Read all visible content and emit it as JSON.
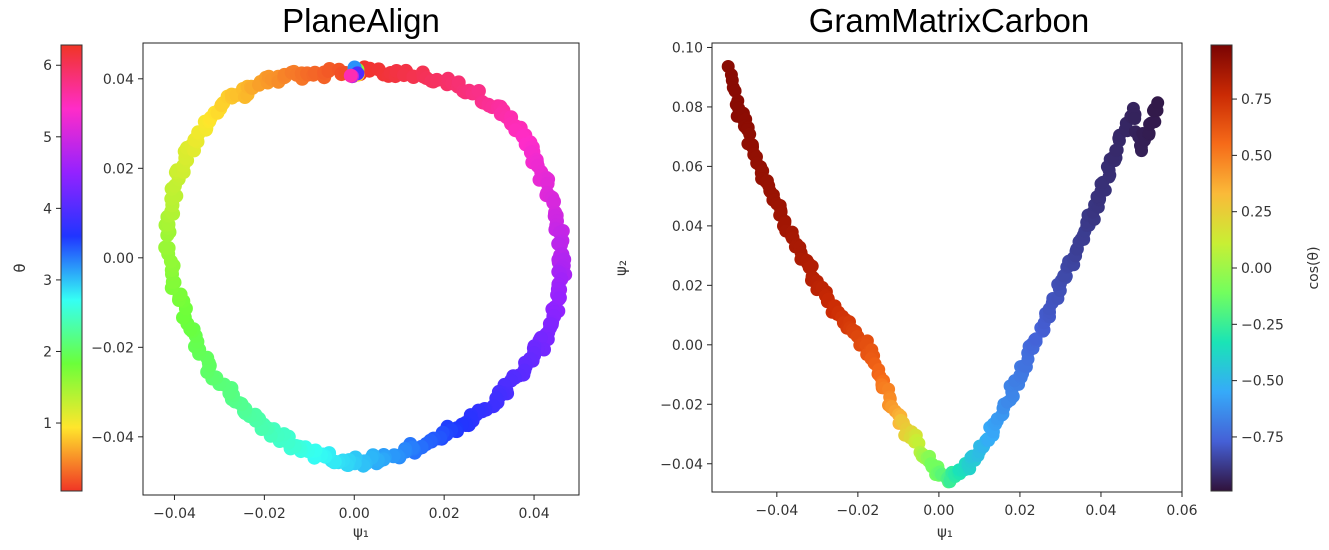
{
  "chart_data": [
    {
      "type": "scatter",
      "title": "PlaneAlign",
      "xlabel": "ψ₁",
      "ylabel": "",
      "xlim": [
        -0.047,
        0.05
      ],
      "ylim": [
        -0.053,
        0.048
      ],
      "xticks": [
        -0.04,
        -0.02,
        0.0,
        0.02,
        0.04
      ],
      "xtick_labels": [
        "−0.04",
        "−0.02",
        "0.00",
        "0.02",
        "0.04"
      ],
      "yticks": [
        -0.04,
        -0.02,
        0.0,
        0.02,
        0.04
      ],
      "ytick_labels": [
        "−0.04",
        "−0.02",
        "0.00",
        "0.02",
        "0.04"
      ],
      "grid": false,
      "colormap": "hsv (rainbow)",
      "colorbar": {
        "label": "θ",
        "position": "left",
        "range": [
          0.05,
          6.283
        ],
        "ticks": [
          1,
          2,
          3,
          4,
          5,
          6
        ],
        "tick_labels": [
          "1",
          "2",
          "3",
          "4",
          "5",
          "6"
        ],
        "gradient_bottom_to_top": [
          "#f03525",
          "#ffe62c",
          "#6bff3a",
          "#35fff4",
          "#2035ff",
          "#9422ff",
          "#ff2cc8",
          "#f03525"
        ]
      },
      "series": [
        {
          "point_description": "closed rounded-triangle loop of points colored by θ",
          "x": [
            0.0,
            0.0081,
            0.0154,
            0.0218,
            0.0273,
            0.032,
            0.0359,
            0.0391,
            0.0416,
            0.0436,
            0.0451,
            0.046,
            0.0463,
            0.0458,
            0.0446,
            0.0427,
            0.04,
            0.0367,
            0.033,
            0.029,
            0.0248,
            0.0205,
            0.016,
            0.0115,
            0.0068,
            0.0022,
            -0.0025,
            -0.0074,
            -0.0122,
            -0.017,
            -0.0219,
            -0.0265,
            -0.0307,
            -0.0345,
            -0.0377,
            -0.04,
            -0.0413,
            -0.0412,
            -0.0399,
            -0.0376,
            -0.0346,
            -0.0311,
            -0.0272,
            -0.023,
            -0.0183,
            -0.0128,
            -0.0067,
            0.0
          ],
          "y": [
            0.0415,
            0.0413,
            0.0405,
            0.039,
            0.0367,
            0.0335,
            0.0294,
            0.0246,
            0.0192,
            0.0137,
            0.0082,
            0.0029,
            -0.0021,
            -0.0071,
            -0.0121,
            -0.0171,
            -0.0218,
            -0.0263,
            -0.0303,
            -0.0339,
            -0.0369,
            -0.0395,
            -0.0416,
            -0.0433,
            -0.0446,
            -0.0455,
            -0.0453,
            -0.0441,
            -0.0422,
            -0.0397,
            -0.0364,
            -0.0321,
            -0.0268,
            -0.0205,
            -0.0133,
            -0.0055,
            0.0022,
            0.0094,
            0.0161,
            0.0223,
            0.0278,
            0.0324,
            0.0358,
            0.0382,
            0.0398,
            0.0409,
            0.0414,
            0.0415
          ],
          "theta": [
            6.283,
            6.152,
            6.021,
            5.89,
            5.76,
            5.629,
            5.498,
            5.367,
            5.236,
            5.105,
            4.974,
            4.843,
            4.712,
            4.581,
            4.451,
            4.32,
            4.189,
            4.058,
            3.927,
            3.796,
            3.665,
            3.534,
            3.403,
            3.272,
            3.142,
            3.011,
            2.88,
            2.749,
            2.618,
            2.487,
            2.356,
            2.225,
            2.094,
            1.963,
            1.833,
            1.702,
            1.571,
            1.44,
            1.309,
            1.178,
            1.047,
            0.916,
            0.785,
            0.654,
            0.524,
            0.393,
            0.262,
            0.131
          ]
        }
      ]
    },
    {
      "type": "scatter",
      "title": "GramMatrixCarbon",
      "xlabel": "ψ₁",
      "ylabel": "ψ₂",
      "xlim": [
        -0.056,
        0.06
      ],
      "ylim": [
        -0.0495,
        0.1015
      ],
      "xticks": [
        -0.04,
        -0.02,
        0.0,
        0.02,
        0.04,
        0.06
      ],
      "xtick_labels": [
        "−0.04",
        "−0.02",
        "0.00",
        "0.02",
        "0.04",
        "0.06"
      ],
      "yticks": [
        -0.04,
        -0.02,
        0.0,
        0.02,
        0.04,
        0.06,
        0.08,
        0.1
      ],
      "ytick_labels": [
        "−0.04",
        "−0.02",
        "0.00",
        "0.02",
        "0.04",
        "0.06",
        "0.08",
        "0.10"
      ],
      "grid": false,
      "colormap": "turbo",
      "colorbar": {
        "label": "cos(θ)",
        "position": "right",
        "range": [
          -0.99,
          0.99
        ],
        "ticks": [
          -0.75,
          -0.5,
          -0.25,
          0.0,
          0.25,
          0.5,
          0.75
        ],
        "tick_labels": [
          "−0.75",
          "−0.50",
          "−0.25",
          "0.00",
          "0.25",
          "0.50",
          "0.75"
        ],
        "gradient_bottom_to_top": [
          "#30123b",
          "#4560d6",
          "#36aaf9",
          "#1ae4b6",
          "#72fe5e",
          "#c8ef34",
          "#faba39",
          "#f66b19",
          "#ca2a04",
          "#7a0403"
        ]
      },
      "series": [
        {
          "point_description": "U-shaped parabola of points colored by cos(θ)",
          "x": [
            -0.052,
            -0.05,
            -0.048,
            -0.046,
            -0.044,
            -0.042,
            -0.04,
            -0.038,
            -0.036,
            -0.034,
            -0.032,
            -0.03,
            -0.028,
            -0.026,
            -0.024,
            -0.022,
            -0.02,
            -0.018,
            -0.016,
            -0.014,
            -0.012,
            -0.01,
            -0.008,
            -0.006,
            -0.004,
            -0.002,
            0.0,
            0.002,
            0.004,
            0.006,
            0.008,
            0.01,
            0.012,
            0.014,
            0.016,
            0.018,
            0.02,
            0.022,
            0.024,
            0.026,
            0.028,
            0.03,
            0.032,
            0.034,
            0.036,
            0.038,
            0.04,
            0.042,
            0.044,
            0.046,
            0.048,
            0.05,
            0.052,
            0.054
          ],
          "y": [
            0.0936,
            0.0808,
            0.0735,
            0.0665,
            0.0599,
            0.0535,
            0.0474,
            0.0416,
            0.0361,
            0.0309,
            0.026,
            0.0214,
            0.0171,
            0.0131,
            0.0093,
            0.0059,
            0.0028,
            -0.0001,
            -0.0062,
            -0.0124,
            -0.0182,
            -0.0235,
            -0.0282,
            -0.0327,
            -0.0368,
            -0.04,
            -0.0439,
            -0.045,
            -0.0443,
            -0.0422,
            -0.0393,
            -0.0359,
            -0.0316,
            -0.0267,
            -0.0213,
            -0.0159,
            -0.0103,
            -0.0048,
            0.0011,
            0.0074,
            0.0141,
            0.0206,
            0.0264,
            0.0322,
            0.0382,
            0.0446,
            0.0517,
            0.0587,
            0.0655,
            0.0724,
            0.0795,
            0.0653,
            0.0742,
            0.0814
          ],
          "cos_theta": [
            0.95,
            0.95,
            0.94,
            0.93,
            0.92,
            0.91,
            0.9,
            0.89,
            0.87,
            0.86,
            0.84,
            0.82,
            0.8,
            0.77,
            0.74,
            0.71,
            0.68,
            0.64,
            0.6,
            0.54,
            0.46,
            0.37,
            0.26,
            0.14,
            0.02,
            -0.1,
            -0.12,
            -0.2,
            -0.28,
            -0.35,
            -0.42,
            -0.48,
            -0.53,
            -0.58,
            -0.62,
            -0.66,
            -0.69,
            -0.72,
            -0.75,
            -0.78,
            -0.8,
            -0.82,
            -0.84,
            -0.86,
            -0.87,
            -0.89,
            -0.9,
            -0.91,
            -0.92,
            -0.93,
            -0.94,
            -0.95,
            -0.96,
            -0.97
          ]
        }
      ]
    }
  ]
}
